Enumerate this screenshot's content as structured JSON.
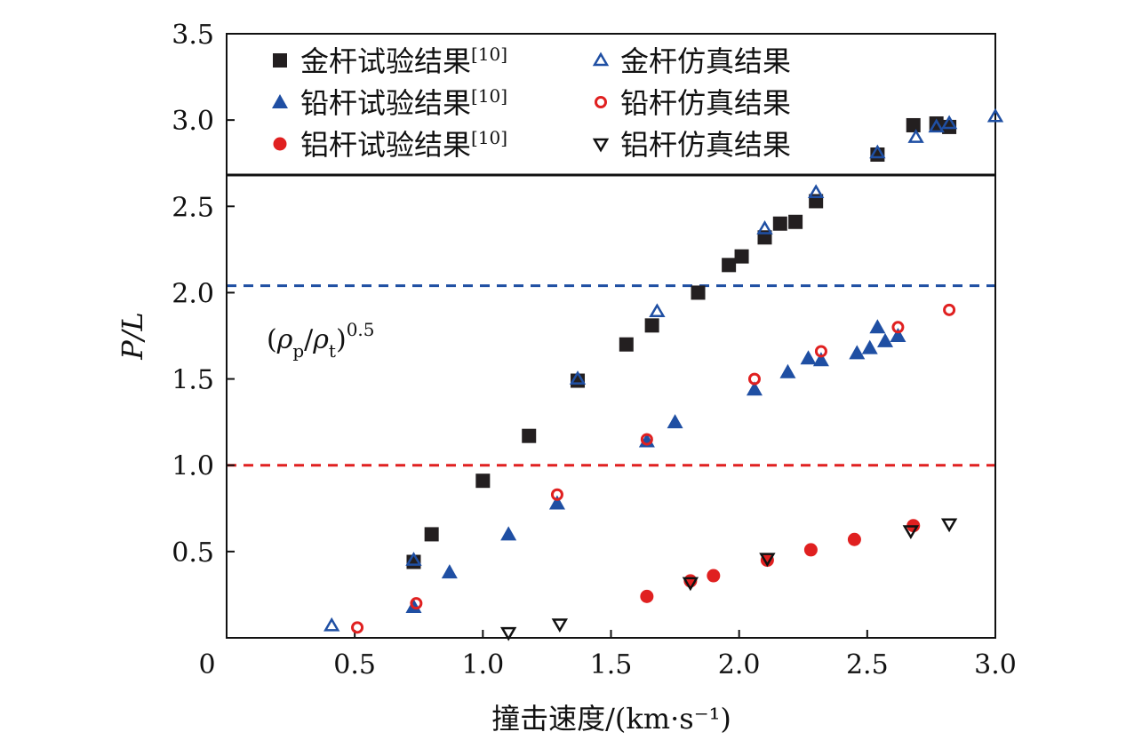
{
  "chart_data": {
    "type": "scatter",
    "xlabel": "撞击速度/(km·s⁻¹)",
    "ylabel": "P/L",
    "xlim": [
      0,
      3.0
    ],
    "ylim": [
      0,
      3.5
    ],
    "xticks": [
      "0",
      "0.5",
      "1.0",
      "1.5",
      "2.0",
      "2.5",
      "3.0"
    ],
    "yticks": [
      "0.5",
      "1.0",
      "1.5",
      "2.0",
      "2.5",
      "3.0",
      "3.5"
    ],
    "legend_position": "top",
    "annotation": "(ρp/ρt)0.5",
    "reference_lines": [
      {
        "y": 2.04,
        "color": "#1f4fa3",
        "style": "dashed"
      },
      {
        "y": 1.0,
        "color": "#e02020",
        "style": "dashed"
      }
    ],
    "series": [
      {
        "name": "金杆试验结果[10]",
        "marker": "square-filled",
        "color": "#231f20",
        "points": [
          [
            0.73,
            0.44
          ],
          [
            0.8,
            0.6
          ],
          [
            1.0,
            0.91
          ],
          [
            1.18,
            1.17
          ],
          [
            1.37,
            1.49
          ],
          [
            1.56,
            1.7
          ],
          [
            1.66,
            1.81
          ],
          [
            1.84,
            2.0
          ],
          [
            1.96,
            2.16
          ],
          [
            2.01,
            2.21
          ],
          [
            2.1,
            2.32
          ],
          [
            2.16,
            2.4
          ],
          [
            2.22,
            2.41
          ],
          [
            2.3,
            2.53
          ],
          [
            2.54,
            2.8
          ],
          [
            2.68,
            2.97
          ],
          [
            2.77,
            2.98
          ],
          [
            2.82,
            2.96
          ]
        ]
      },
      {
        "name": "铅杆试验结果[10]",
        "marker": "triangle-up-filled",
        "color": "#1f4fa3",
        "points": [
          [
            0.73,
            0.18
          ],
          [
            0.87,
            0.38
          ],
          [
            1.1,
            0.6
          ],
          [
            1.29,
            0.78
          ],
          [
            1.64,
            1.14
          ],
          [
            1.75,
            1.25
          ],
          [
            2.06,
            1.44
          ],
          [
            2.19,
            1.54
          ],
          [
            2.27,
            1.62
          ],
          [
            2.32,
            1.61
          ],
          [
            2.46,
            1.65
          ],
          [
            2.51,
            1.68
          ],
          [
            2.54,
            1.8
          ],
          [
            2.57,
            1.72
          ],
          [
            2.62,
            1.75
          ]
        ]
      },
      {
        "name": "铝杆试验结果[10]",
        "marker": "circle-filled",
        "color": "#e02020",
        "points": [
          [
            1.64,
            0.24
          ],
          [
            1.81,
            0.33
          ],
          [
            1.9,
            0.36
          ],
          [
            2.11,
            0.45
          ],
          [
            2.28,
            0.51
          ],
          [
            2.45,
            0.57
          ],
          [
            2.68,
            0.65
          ]
        ]
      },
      {
        "name": "金杆仿真结果",
        "marker": "triangle-up-open",
        "color": "#1f4fa3",
        "points": [
          [
            0.41,
            0.07
          ],
          [
            0.73,
            0.45
          ],
          [
            1.37,
            1.5
          ],
          [
            1.68,
            1.89
          ],
          [
            2.1,
            2.37
          ],
          [
            2.3,
            2.58
          ],
          [
            2.54,
            2.81
          ],
          [
            2.69,
            2.9
          ],
          [
            2.77,
            2.96
          ],
          [
            2.82,
            2.98
          ],
          [
            3.0,
            3.02
          ]
        ]
      },
      {
        "name": "铅杆仿真结果",
        "marker": "circle-open",
        "color": "#e02020",
        "points": [
          [
            0.51,
            0.06
          ],
          [
            0.74,
            0.2
          ],
          [
            1.29,
            0.83
          ],
          [
            1.64,
            1.15
          ],
          [
            2.06,
            1.5
          ],
          [
            2.32,
            1.66
          ],
          [
            2.62,
            1.8
          ],
          [
            2.82,
            1.9
          ]
        ]
      },
      {
        "name": "铝杆仿真结果",
        "marker": "triangle-down-open",
        "color": "#111111",
        "points": [
          [
            1.1,
            0.03
          ],
          [
            1.3,
            0.08
          ],
          [
            1.81,
            0.32
          ],
          [
            2.11,
            0.46
          ],
          [
            2.67,
            0.62
          ],
          [
            2.82,
            0.66
          ]
        ]
      }
    ]
  }
}
